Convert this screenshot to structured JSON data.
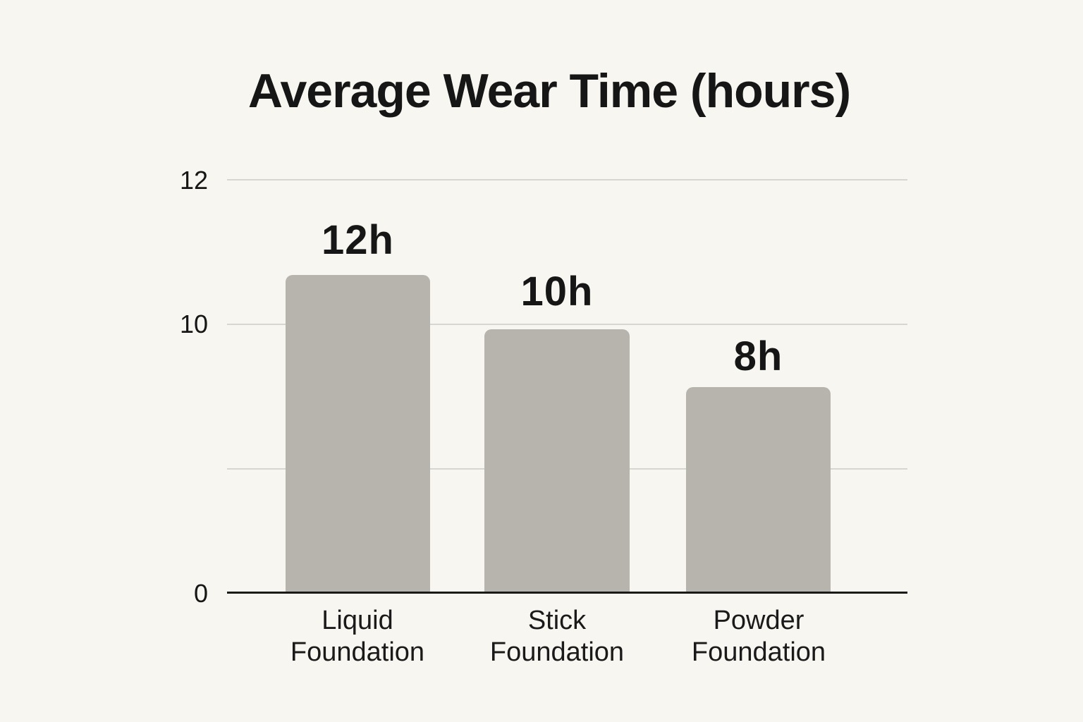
{
  "page": {
    "background_color": "#f8f6f0",
    "text_color": "#161616"
  },
  "chart_data": {
    "type": "bar",
    "title": "Average Wear Time (hours)",
    "categories": [
      "Liquid Foundation",
      "Stick Foundation",
      "Powder Foundation"
    ],
    "values": [
      12,
      10,
      8
    ],
    "value_labels": [
      "12h",
      "10h",
      "8h"
    ],
    "unit": "hours",
    "xlabel": "",
    "ylabel": "",
    "ytick_labels": [
      "12",
      "10",
      "0"
    ],
    "ylim": [
      0,
      12
    ],
    "grid": true,
    "has_unlabeled_gridline_between_10_and_0": true,
    "legend_position": "none",
    "bar_color": "#b7b4ae",
    "gridline_color": "#d9d6d0",
    "axis_color": "#1a1a1a"
  }
}
